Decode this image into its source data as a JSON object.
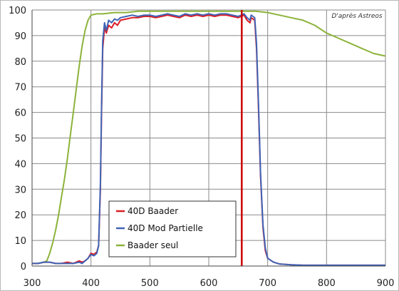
{
  "chart_data": {
    "type": "line",
    "title": "",
    "xlabel": "",
    "ylabel": "",
    "xlim": [
      300,
      900
    ],
    "ylim": [
      0,
      100
    ],
    "x_ticks": [
      300,
      400,
      500,
      600,
      700,
      800,
      900
    ],
    "y_ticks": [
      0,
      10,
      20,
      30,
      40,
      50,
      60,
      70,
      80,
      90,
      100
    ],
    "grid": "vertical-and-horizontal",
    "legend_position": "bottom-left",
    "annotation": "D'après Astreos",
    "series": [
      {
        "name": "40D Baader",
        "color": "#dd1c24",
        "x": [
          300,
          310,
          320,
          330,
          340,
          350,
          360,
          370,
          380,
          385,
          390,
          395,
          400,
          405,
          410,
          413,
          416,
          418,
          420,
          423,
          426,
          430,
          435,
          440,
          445,
          450,
          460,
          470,
          480,
          490,
          500,
          510,
          520,
          530,
          540,
          550,
          560,
          570,
          580,
          590,
          600,
          610,
          620,
          630,
          640,
          650,
          655,
          660,
          665,
          670,
          672,
          675,
          678,
          681,
          684,
          688,
          692,
          696,
          700,
          710,
          720,
          740,
          760,
          800,
          850,
          900
        ],
        "y": [
          1,
          1,
          1.5,
          1.5,
          1,
          1,
          1.5,
          1,
          2,
          1.5,
          2,
          3,
          5,
          4.5,
          5.5,
          8,
          30,
          60,
          85,
          93,
          91,
          94,
          93,
          95,
          94,
          96,
          96.5,
          97,
          97,
          97.5,
          97.5,
          97,
          97.5,
          98,
          97.5,
          97,
          98,
          97.5,
          98,
          97.5,
          98,
          97.5,
          98,
          98,
          97.5,
          97,
          97.5,
          98,
          96,
          95,
          97,
          96.5,
          96,
          85,
          65,
          35,
          15,
          6,
          3,
          1.5,
          0.8,
          0.5,
          0.3,
          0.3,
          0.3,
          0.3
        ]
      },
      {
        "name": "40D Mod Partielle",
        "color": "#3f64b6",
        "x": [
          300,
          310,
          320,
          330,
          340,
          350,
          360,
          370,
          380,
          385,
          390,
          395,
          400,
          405,
          410,
          413,
          416,
          418,
          420,
          423,
          426,
          430,
          435,
          440,
          445,
          450,
          460,
          470,
          480,
          490,
          500,
          510,
          520,
          530,
          540,
          550,
          560,
          570,
          580,
          590,
          600,
          610,
          620,
          630,
          640,
          650,
          655,
          660,
          665,
          670,
          672,
          675,
          678,
          681,
          684,
          688,
          692,
          696,
          700,
          710,
          720,
          740,
          760,
          800,
          850,
          900
        ],
        "y": [
          1,
          1,
          1.5,
          1.5,
          1,
          1,
          1,
          1,
          1.5,
          1,
          2,
          3,
          4.5,
          4,
          5,
          8,
          32,
          62,
          88,
          95,
          92,
          96,
          95,
          96.5,
          96,
          97,
          97.5,
          98,
          97.5,
          98,
          98,
          97.5,
          98,
          98.5,
          98,
          97.5,
          98.5,
          98,
          98.5,
          98,
          98.5,
          98,
          98.5,
          98.5,
          98,
          97.5,
          98,
          98.5,
          97,
          96,
          98,
          97.5,
          97,
          87,
          67,
          36,
          16,
          7,
          3,
          1.5,
          0.8,
          0.5,
          0.3,
          0.3,
          0.3,
          0.3
        ]
      },
      {
        "name": "Baader seul",
        "color": "#8cb33a",
        "x": [
          300,
          310,
          320,
          325,
          330,
          335,
          340,
          345,
          350,
          355,
          360,
          365,
          370,
          375,
          380,
          385,
          390,
          395,
          400,
          410,
          420,
          440,
          460,
          480,
          500,
          520,
          540,
          560,
          580,
          600,
          620,
          640,
          660,
          680,
          700,
          720,
          740,
          760,
          780,
          800,
          820,
          840,
          860,
          880,
          900
        ],
        "y": [
          1,
          1,
          1.5,
          2,
          5,
          9,
          14,
          20,
          27,
          34,
          42,
          51,
          60,
          69,
          78,
          86,
          92,
          96,
          98,
          98.5,
          98.5,
          99,
          99,
          99.5,
          99.5,
          99.5,
          99.5,
          99.5,
          99.5,
          99.5,
          99.5,
          99.5,
          99.5,
          99.5,
          99,
          98,
          97,
          96,
          94,
          91,
          89,
          87,
          85,
          83,
          82
        ]
      }
    ],
    "marker_line": {
      "x": 656,
      "color": "#cc0000"
    }
  }
}
